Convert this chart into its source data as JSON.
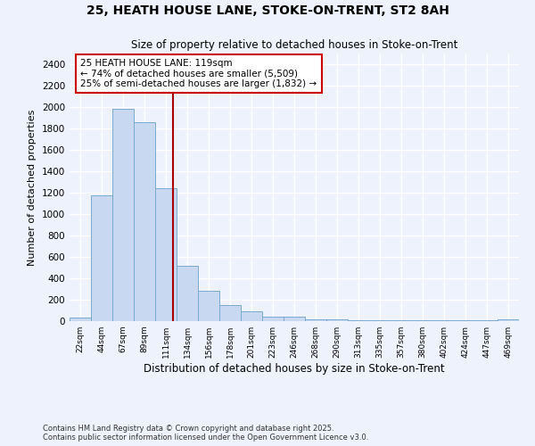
{
  "title_line1": "25, HEATH HOUSE LANE, STOKE-ON-TRENT, ST2 8AH",
  "title_line2": "Size of property relative to detached houses in Stoke-on-Trent",
  "xlabel": "Distribution of detached houses by size in Stoke-on-Trent",
  "ylabel": "Number of detached properties",
  "bin_labels": [
    "22sqm",
    "44sqm",
    "67sqm",
    "89sqm",
    "111sqm",
    "134sqm",
    "156sqm",
    "178sqm",
    "201sqm",
    "223sqm",
    "246sqm",
    "268sqm",
    "290sqm",
    "313sqm",
    "335sqm",
    "357sqm",
    "380sqm",
    "402sqm",
    "424sqm",
    "447sqm",
    "469sqm"
  ],
  "bar_heights": [
    30,
    1175,
    1980,
    1860,
    1240,
    520,
    280,
    150,
    90,
    45,
    45,
    20,
    20,
    5,
    5,
    5,
    5,
    5,
    5,
    5,
    20
  ],
  "bar_color": "#c8d8f0",
  "bar_edgecolor": "#7aaad0",
  "vline_color": "#aa0000",
  "annotation_text": "25 HEATH HOUSE LANE: 119sqm\n← 74% of detached houses are smaller (5,509)\n25% of semi-detached houses are larger (1,832) →",
  "annotation_box_edgecolor": "#cc0000",
  "annotation_box_facecolor": "#ffffff",
  "ylim": [
    0,
    2500
  ],
  "yticks": [
    0,
    200,
    400,
    600,
    800,
    1000,
    1200,
    1400,
    1600,
    1800,
    2000,
    2200,
    2400
  ],
  "background_color": "#eef2fc",
  "grid_color": "#ffffff",
  "footer_line1": "Contains HM Land Registry data © Crown copyright and database right 2025.",
  "footer_line2": "Contains public sector information licensed under the Open Government Licence v3.0."
}
